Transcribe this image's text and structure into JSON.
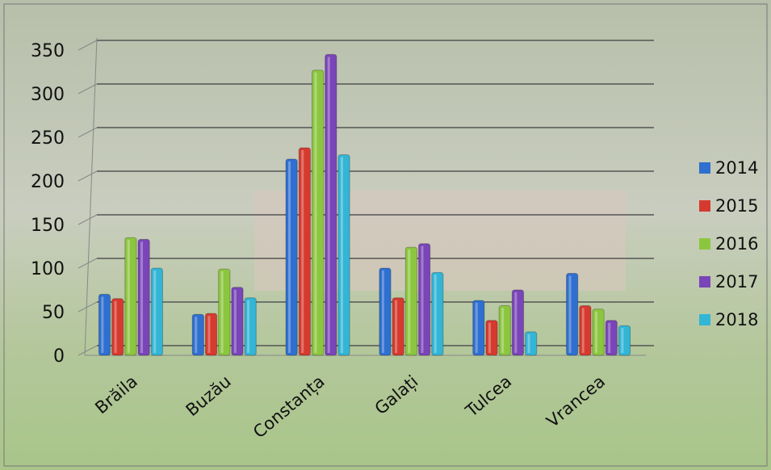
{
  "chart_data": {
    "type": "bar",
    "categories": [
      "Brăila",
      "Buzău",
      "Constanța",
      "Galați",
      "Tulcea",
      "Vrancea"
    ],
    "series": [
      {
        "name": "2014",
        "color": "#2f6fd0",
        "values": [
          70,
          47,
          225,
          100,
          63,
          94
        ]
      },
      {
        "name": "2015",
        "color": "#d63a2f",
        "values": [
          65,
          48,
          238,
          66,
          40,
          57
        ]
      },
      {
        "name": "2016",
        "color": "#8cc63f",
        "values": [
          135,
          99,
          327,
          124,
          57,
          53
        ]
      },
      {
        "name": "2017",
        "color": "#7a45b8",
        "values": [
          133,
          78,
          345,
          128,
          75,
          40
        ]
      },
      {
        "name": "2018",
        "color": "#33b5d6",
        "values": [
          100,
          66,
          230,
          95,
          27,
          34
        ]
      }
    ],
    "ylim": [
      0,
      350
    ],
    "yticks": [
      0,
      50,
      100,
      150,
      200,
      250,
      300,
      350
    ],
    "grid": true,
    "legend": "right"
  }
}
